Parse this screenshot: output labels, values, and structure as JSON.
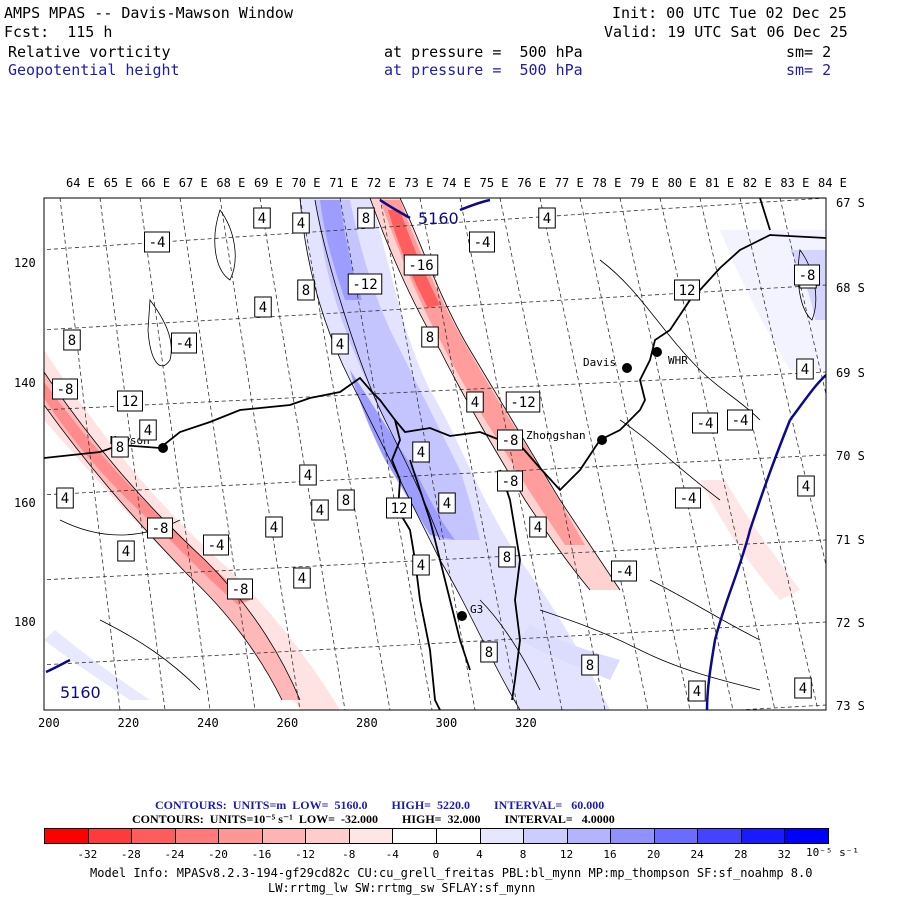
{
  "header": {
    "title": "AMPS MPAS -- Davis-Mawson Window",
    "forecast": "Fcst:  115 h",
    "init": "Init: 00 UTC Tue 02 Dec 25",
    "valid": "Valid: 19 UTC Sat 06 Dec 25",
    "field1": {
      "name": "Relative vorticity",
      "level": "at pressure =  500 hPa",
      "smooth": "sm= 2"
    },
    "field2": {
      "name": "Geopotential height",
      "level": "at pressure =  500 hPa",
      "smooth": "sm= 2"
    }
  },
  "map": {
    "top_labels": [
      "64 E",
      "65 E",
      "66 E",
      "67 E",
      "68 E",
      "69 E",
      "70 E",
      "71 E",
      "72 E",
      "73 E",
      "74 E",
      "75 E",
      "76 E",
      "77 E",
      "78 E",
      "79 E",
      "80 E",
      "81 E",
      "82 E",
      "83 E",
      "84 E"
    ],
    "right_labels": [
      "67 S",
      "68 S",
      "69 S",
      "70 S",
      "71 S",
      "72 S",
      "73 S"
    ],
    "y_ticks": [
      "120",
      "140",
      "160",
      "180"
    ],
    "x_ticks": [
      "200",
      "220",
      "240",
      "260",
      "280",
      "300",
      "320"
    ],
    "stations": [
      {
        "name": "Mawson"
      },
      {
        "name": "Davis"
      },
      {
        "name": "WHR"
      },
      {
        "name": "Zhongshan"
      },
      {
        "name": "G3"
      }
    ],
    "height_labels": [
      "5160",
      "5160"
    ],
    "vort_labels": [
      "8",
      "4",
      "8",
      "-4",
      "-16",
      "4",
      "-4",
      "4",
      "8",
      "12",
      "4",
      "8",
      "-12",
      "8",
      "-4",
      "4",
      "12",
      "4",
      "-8",
      "4",
      "-12",
      "-4",
      "4",
      "4",
      "-8",
      "4",
      "-8",
      "8",
      "4",
      "8",
      "4",
      "12",
      "-8",
      "4",
      "-4",
      "4",
      "-4",
      "4",
      "4",
      "-8",
      "4",
      "8",
      "-4",
      "4",
      "8",
      "8",
      "4",
      "4",
      "-8",
      "4",
      "-4"
    ]
  },
  "footer": {
    "height_contours": "CONTOURS:  UNITS=m  LOW=  5160.0        HIGH=  5220.0        INTERVAL=   60.000",
    "vort_contours": "CONTOURS:  UNITS=10⁻⁵ s⁻¹  LOW=  -32.000        HIGH=  32.000        INTERVAL=   4.0000",
    "colorbar_labels": [
      "-32",
      "-28",
      "-24",
      "-20",
      "-16",
      "-12",
      "-8",
      "-4",
      "0",
      "4",
      "8",
      "12",
      "16",
      "20",
      "24",
      "28",
      "32"
    ],
    "colorbar_units": "10⁻⁵ s⁻¹",
    "colorbar_colors": [
      "#ff0000",
      "#ff3a3a",
      "#ff5c5c",
      "#ff7b7b",
      "#ff9797",
      "#ffb3b3",
      "#ffcccc",
      "#ffe6e6",
      "#ffffff",
      "#ffffff",
      "#e6e6ff",
      "#ccccff",
      "#b3b3ff",
      "#9090ff",
      "#6b6bff",
      "#4444ff",
      "#1a1aff",
      "#0000ff"
    ],
    "model_info": "Model Info: MPASv8.2.3-194-gf29cd82c CU:cu_grell_freitas PBL:bl_mynn MP:mp_thompson SF:sf_noahmp 8.0",
    "model_info2": "LW:rrtmg_lw SW:rrtmg_sw SFLAY:sf_mynn"
  }
}
